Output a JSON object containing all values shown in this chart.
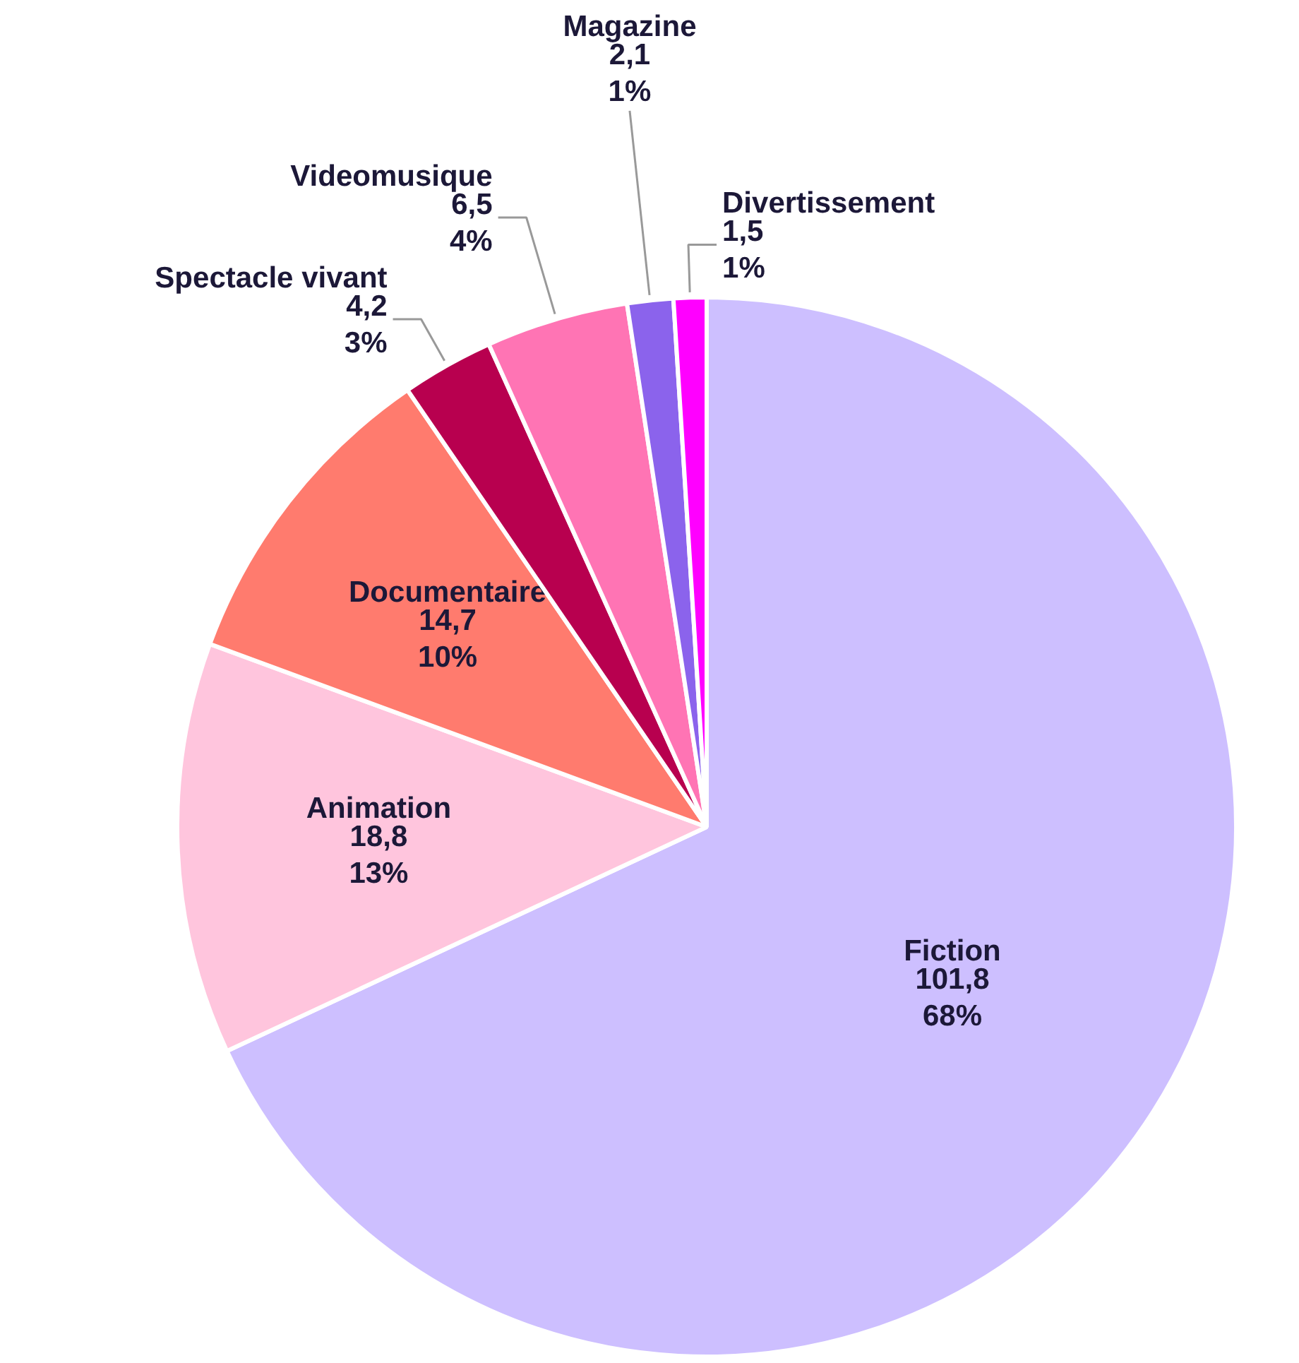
{
  "chart_data": {
    "type": "pie",
    "categories": [
      "Fiction",
      "Animation",
      "Documentaire",
      "Spectacle vivant",
      "Videomusique",
      "Magazine",
      "Divertissement"
    ],
    "values": [
      101.8,
      18.8,
      14.7,
      4.2,
      6.5,
      2.1,
      1.5
    ],
    "colors": [
      "#cdbfff",
      "#ffc5dd",
      "#ff7b6e",
      "#b8004f",
      "#ff74b4",
      "#8b63ec",
      "#ff00ff"
    ],
    "value_labels": [
      "101,8\n68%",
      "18,8\n13%",
      "14,7\n10%",
      "4,2\n3%",
      "6,5\n4%",
      "2,1\n1%",
      "1,5\n1%"
    ]
  }
}
